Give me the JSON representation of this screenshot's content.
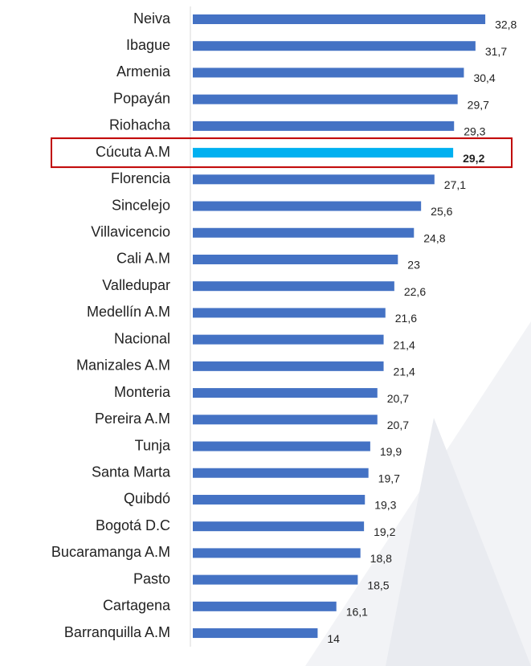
{
  "chart_data": {
    "type": "bar",
    "orientation": "horizontal",
    "categories": [
      "Neiva",
      "Ibague",
      "Armenia",
      "Popayán",
      "Riohacha",
      "Cúcuta A.M",
      "Florencia",
      "Sincelejo",
      "Villavicencio ",
      "Cali A.M",
      "Valledupar",
      "Medellín A.M",
      "Nacional",
      "Manizales A.M",
      "Monteria",
      "Pereira A.M",
      "Tunja",
      "Santa Marta",
      "Quibdó",
      "Bogotá D.C",
      "Bucaramanga A.M",
      "Pasto",
      "Cartagena",
      "Barranquilla A.M"
    ],
    "values": [
      32.8,
      31.7,
      30.4,
      29.7,
      29.3,
      29.2,
      27.1,
      25.6,
      24.8,
      23,
      22.6,
      21.6,
      21.4,
      21.4,
      20.7,
      20.7,
      19.9,
      19.7,
      19.3,
      19.2,
      18.8,
      18.5,
      16.1,
      14
    ],
    "value_labels": [
      "32,8",
      "31,7",
      "30,4",
      "29,7",
      "29,3",
      "29,2",
      "27,1",
      "25,6",
      "24,8",
      "23",
      "22,6",
      "21,6",
      "21,4",
      "21,4",
      "20,7",
      "20,7",
      "19,9",
      "19,7",
      "19,3",
      "19,2",
      "18,8",
      "18,5",
      "16,1",
      "14"
    ],
    "color": "#4472c4",
    "highlight": "Cúcuta A.M",
    "highlight_color": "#00b0f0",
    "highlight_box_color": "#c00000"
  }
}
